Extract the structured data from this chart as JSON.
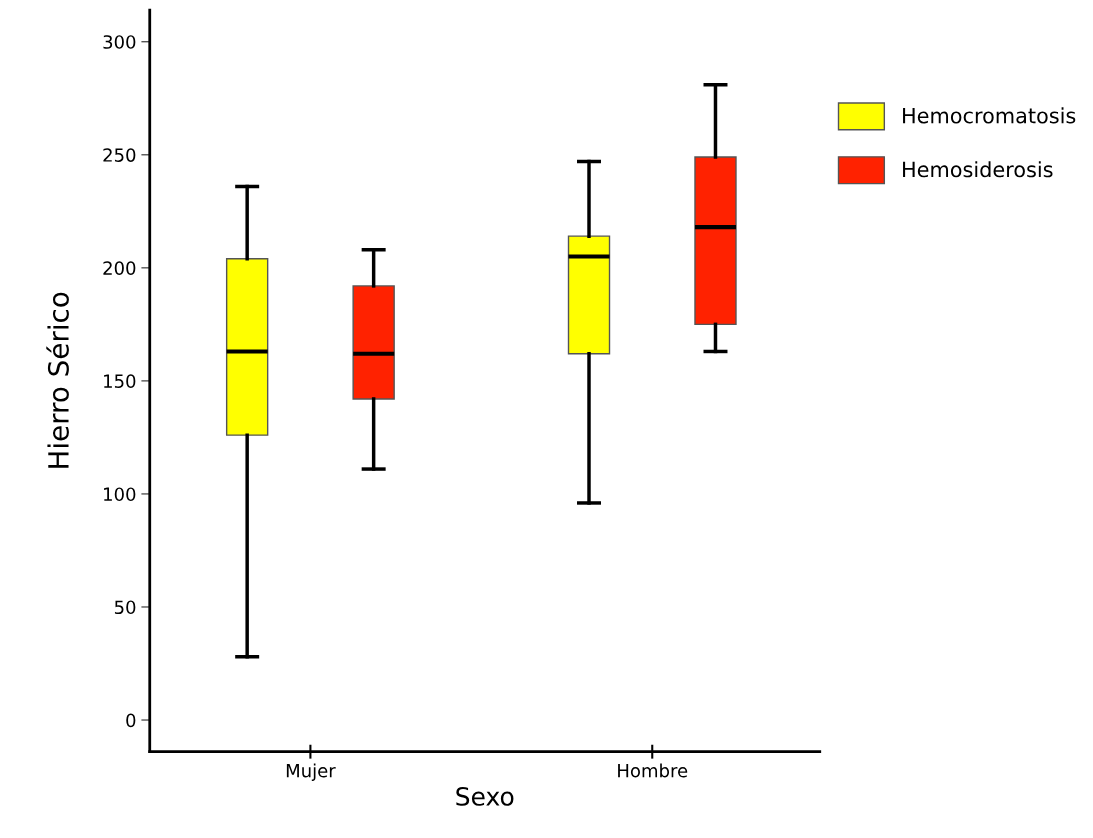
{
  "chart_data": {
    "type": "box",
    "xlabel": "Sexo",
    "ylabel": "Hierro Sérico",
    "categories": [
      "Mujer",
      "Hombre"
    ],
    "series": [
      {
        "name": "Hemocromatosis",
        "color": "#ffff00",
        "boxes": [
          {
            "low": 28,
            "q1": 126,
            "median": 163,
            "q3": 204,
            "high": 236
          },
          {
            "low": 96,
            "q1": 162,
            "median": 205,
            "q3": 214,
            "high": 247
          }
        ]
      },
      {
        "name": "Hemosiderosis",
        "color": "#ff2200",
        "boxes": [
          {
            "low": 111,
            "q1": 142,
            "median": 162,
            "q3": 192,
            "high": 208
          },
          {
            "low": 163,
            "q1": 175,
            "median": 218,
            "q3": 249,
            "high": 281
          }
        ]
      }
    ],
    "ylim": [
      -14,
      314
    ],
    "yticks": [
      0,
      50,
      100,
      150,
      200,
      250,
      300
    ],
    "grid": false,
    "legend": "right"
  }
}
